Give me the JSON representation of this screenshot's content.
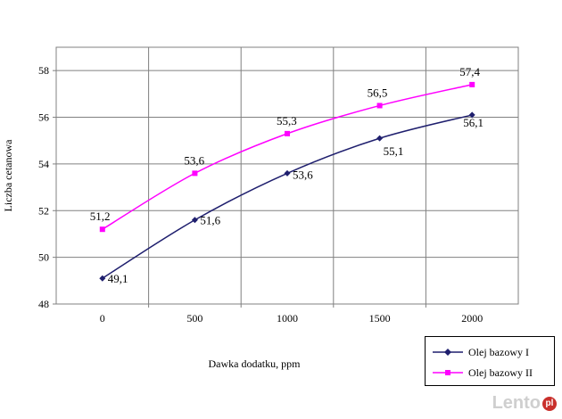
{
  "chart_data": {
    "type": "line",
    "x": [
      0,
      500,
      1000,
      1500,
      2000
    ],
    "xlabel": "Dawka dodatku, ppm",
    "ylabel": "Liczba cetanowa",
    "xlim": [
      -250,
      2250
    ],
    "ylim": [
      48,
      59
    ],
    "yticks": [
      48,
      50,
      52,
      54,
      56,
      58
    ],
    "xticks": [
      0,
      500,
      1000,
      1500,
      2000
    ],
    "grid": true,
    "legend_position": "bottom-right",
    "series": [
      {
        "name": "Olej bazowy I",
        "color": "#1f1f6e",
        "marker": "diamond",
        "values": [
          49.1,
          51.6,
          53.6,
          55.1,
          56.1
        ],
        "labels": [
          "49,1",
          "51,6",
          "53,6",
          "55,1",
          "56,1"
        ]
      },
      {
        "name": "Olej bazowy II",
        "color": "#ff00ff",
        "marker": "square",
        "values": [
          51.2,
          53.6,
          55.3,
          56.5,
          57.4
        ],
        "labels": [
          "51,2",
          "53,6",
          "55,3",
          "56,5",
          "57,4"
        ]
      }
    ]
  },
  "watermark": {
    "text": "Lento",
    "badge": "pl"
  }
}
